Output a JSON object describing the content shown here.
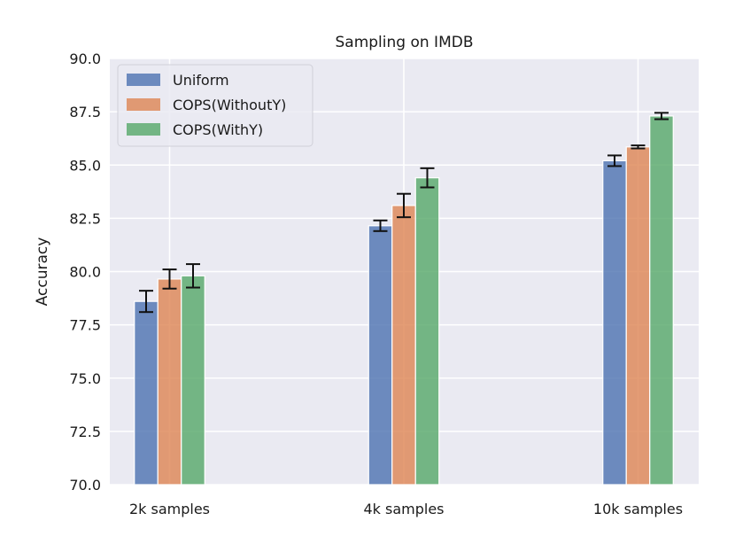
{
  "chart_data": {
    "type": "bar",
    "title": "Sampling  on IMDB",
    "xlabel": "",
    "ylabel": "Accuracy",
    "ylim": [
      70.0,
      90.0
    ],
    "yticks": [
      "70.0",
      "72.5",
      "75.0",
      "77.5",
      "80.0",
      "82.5",
      "85.0",
      "87.5",
      "90.0"
    ],
    "categories": [
      "2k samples",
      "4k samples",
      "10k samples"
    ],
    "series": [
      {
        "name": "Uniform",
        "color": "#4c72b0",
        "values": [
          78.6,
          82.15,
          85.2
        ],
        "errors": [
          0.5,
          0.25,
          0.25
        ]
      },
      {
        "name": "COPS(WithoutY)",
        "color": "#dd8452",
        "values": [
          79.65,
          83.1,
          85.85
        ],
        "errors": [
          0.45,
          0.55,
          0.07
        ]
      },
      {
        "name": "COPS(WithY)",
        "color": "#55a868",
        "values": [
          79.8,
          84.4,
          87.3
        ],
        "errors": [
          0.55,
          0.45,
          0.15
        ]
      }
    ],
    "legend": "top-left",
    "grid": true
  }
}
